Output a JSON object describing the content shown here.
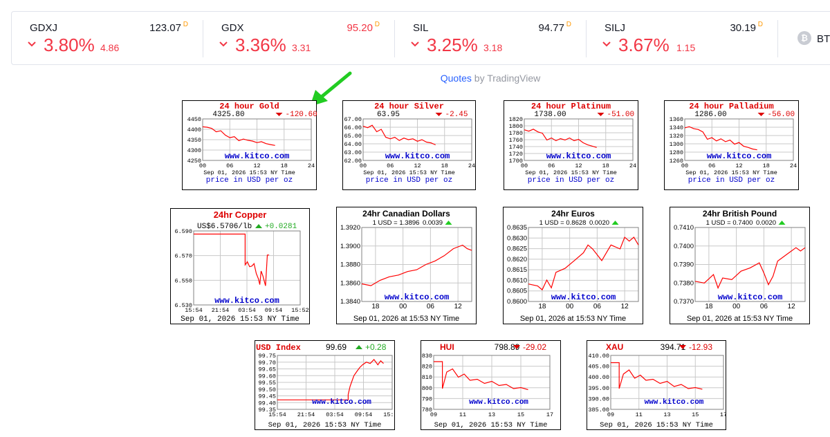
{
  "tickers": [
    {
      "symbol": "GDXJ",
      "price": "123.07",
      "price_red": false,
      "flag": "D",
      "pct": "3.80%",
      "abs": "4.86"
    },
    {
      "symbol": "GDX",
      "price": "95.20",
      "price_red": true,
      "flag": "D",
      "pct": "3.36%",
      "abs": "3.31"
    },
    {
      "symbol": "SIL",
      "price": "94.77",
      "price_red": false,
      "flag": "D",
      "pct": "3.25%",
      "abs": "3.18"
    },
    {
      "symbol": "SILJ",
      "price": "30.19",
      "price_red": false,
      "flag": "D",
      "pct": "3.67%",
      "abs": "1.15"
    }
  ],
  "ticker_partial": {
    "icon": "bitcoin-icon",
    "label": "BTC"
  },
  "attribution": {
    "quotes": "Quotes",
    "by": " by TradingView"
  },
  "annotation": {
    "icon": "green-arrow-icon",
    "color": "#22cc22"
  },
  "colors": {
    "up": "#22aa22",
    "down": "#ff0000",
    "line": "#ff0000",
    "site": "#0000cc",
    "red_text": "#f23645",
    "orange": "#ff9800"
  },
  "chart_data": [
    {
      "type": "line",
      "title": "24 hour Gold",
      "value": "4325.80",
      "change": "-120.60",
      "direction": "down",
      "yticks": [
        "4450",
        "4400",
        "4350",
        "4300",
        "4250"
      ],
      "ylim": [
        4250,
        4460
      ],
      "xticks": [
        "00",
        "06",
        "12",
        "18",
        "24"
      ],
      "xlim": [
        0,
        24
      ],
      "site": "www.kitco.com",
      "date": "Sep 01, 2026 15:53 NY Time",
      "footer": "price in USD per oz",
      "x": [
        0,
        1,
        2,
        3,
        4,
        5,
        6,
        7,
        8,
        9,
        10,
        11,
        12,
        13,
        14,
        15,
        16
      ],
      "y": [
        4420,
        4418,
        4412,
        4395,
        4400,
        4378,
        4365,
        4370,
        4350,
        4358,
        4352,
        4348,
        4340,
        4345,
        4335,
        4330,
        4326
      ]
    },
    {
      "type": "line",
      "title": "24 hour Silver",
      "value": "63.95",
      "change": "-2.45",
      "direction": "down",
      "yticks": [
        "67.00",
        "66.00",
        "65.00",
        "64.00",
        "63.00",
        "62.00"
      ],
      "ylim": [
        62,
        67.2
      ],
      "xticks": [
        "00",
        "06",
        "12",
        "18",
        "24"
      ],
      "xlim": [
        0,
        24
      ],
      "site": "www.kitco.com",
      "date": "Sep 01, 2026 15:53 NY Time",
      "footer": "price in USD per oz",
      "x": [
        0,
        1,
        2,
        3,
        4,
        5,
        6,
        7,
        8,
        9,
        10,
        11,
        12,
        13,
        14,
        15,
        16
      ],
      "y": [
        66.3,
        66.1,
        66.4,
        65.6,
        65.9,
        64.9,
        64.7,
        64.9,
        64.5,
        64.8,
        64.6,
        64.7,
        64.4,
        64.6,
        64.3,
        64.2,
        63.95
      ]
    },
    {
      "type": "line",
      "title": "24 hour Platinum",
      "value": "1738.00",
      "change": "-51.00",
      "direction": "down",
      "yticks": [
        "1820",
        "1800",
        "1780",
        "1760",
        "1740",
        "1720",
        "1700"
      ],
      "ylim": [
        1700,
        1822
      ],
      "xticks": [
        "00",
        "06",
        "12",
        "18",
        "24"
      ],
      "xlim": [
        0,
        24
      ],
      "site": "www.kitco.com",
      "date": "Sep 01, 2026 15:53 NY Time",
      "footer": "price in USD per oz",
      "x": [
        0,
        1,
        2,
        3,
        4,
        5,
        6,
        7,
        8,
        9,
        10,
        11,
        12,
        13,
        14,
        15,
        16
      ],
      "y": [
        1790,
        1786,
        1792,
        1784,
        1780,
        1760,
        1766,
        1758,
        1764,
        1760,
        1766,
        1758,
        1762,
        1752,
        1746,
        1742,
        1738
      ]
    },
    {
      "type": "line",
      "title": "24 hour Palladium",
      "value": "1286.00",
      "change": "-56.00",
      "direction": "down",
      "yticks": [
        "1360",
        "1340",
        "1320",
        "1300",
        "1280",
        "1260"
      ],
      "ylim": [
        1260,
        1362
      ],
      "xticks": [
        "00",
        "06",
        "12",
        "18",
        "24"
      ],
      "xlim": [
        0,
        24
      ],
      "site": "www.kitco.com",
      "date": "Sep 01, 2026 15:53 NY Time",
      "footer": "price in USD per oz",
      "x": [
        0,
        1,
        2,
        3,
        4,
        5,
        6,
        7,
        8,
        9,
        10,
        11,
        12,
        13,
        14,
        15,
        16
      ],
      "y": [
        1340,
        1343,
        1338,
        1336,
        1330,
        1312,
        1316,
        1308,
        1313,
        1306,
        1310,
        1300,
        1304,
        1295,
        1292,
        1288,
        1286
      ]
    },
    {
      "type": "line",
      "title": "24hr Copper",
      "value": "US$6.5706/lb",
      "change": "+0.0281",
      "direction": "up",
      "yticks": [
        "6.590",
        "6.570",
        "6.550",
        "6.530"
      ],
      "ylim": [
        6.53,
        6.59
      ],
      "xticks": [
        "15:54",
        "21:54",
        "03:54",
        "09:54",
        "15:52"
      ],
      "xlim": [
        0,
        24
      ],
      "site": "www.kitco.com",
      "date": "Sep 01, 2026 15:53 NY Time",
      "x": [
        0,
        11.6,
        11.6,
        12.1,
        12.6,
        13.1,
        13.6,
        14.1,
        14.6,
        14.9,
        15.2,
        15.6,
        16.2,
        16.6,
        17
      ],
      "y": [
        6.5875,
        6.5875,
        6.5625,
        6.565,
        6.561,
        6.5615,
        6.5635,
        6.5555,
        6.551,
        6.5465,
        6.5575,
        6.5535,
        6.5455,
        6.5705,
        6.5705
      ]
    },
    {
      "type": "line",
      "title": "24hr Canadian Dollars",
      "value": "1 USD = 1.3896",
      "change": "0.0039",
      "direction": "up",
      "yticks": [
        "1.3920",
        "1.3900",
        "1.3880",
        "1.3860",
        "1.3840"
      ],
      "ylim": [
        1.3838,
        1.3922
      ],
      "xticks": [
        "18",
        "00",
        "06",
        "12"
      ],
      "xlim": [
        15,
        39
      ],
      "site": "www.kitco.com",
      "date": "Sep 01, 2026 at 15:53 NY Time",
      "x": [
        15,
        17,
        19,
        21,
        23,
        25,
        27,
        29,
        31,
        33,
        35,
        37,
        38,
        39
      ],
      "y": [
        1.3858,
        1.3856,
        1.3862,
        1.3866,
        1.3868,
        1.3872,
        1.3874,
        1.388,
        1.3884,
        1.389,
        1.3898,
        1.3902,
        1.3898,
        1.3896
      ]
    },
    {
      "type": "line",
      "title": "24hr Euros",
      "value": "1 USD = 0.8628",
      "change": "0.0020",
      "direction": "up",
      "yticks": [
        "0.8635",
        "0.8630",
        "0.8625",
        "0.8620",
        "0.8615",
        "0.8610",
        "0.8605",
        "0.8600"
      ],
      "ylim": [
        0.8599,
        0.8637
      ],
      "xticks": [
        "18",
        "00",
        "06",
        "12"
      ],
      "xlim": [
        15,
        39
      ],
      "site": "www.kitco.com",
      "date": "Sep 01, 2026 at 15:53 NY Time",
      "x": [
        15,
        17,
        18,
        19,
        20,
        21,
        23,
        25,
        27,
        28,
        29,
        31,
        33,
        35,
        36,
        37,
        38,
        39
      ],
      "y": [
        0.8608,
        0.8607,
        0.8605,
        0.861,
        0.8606,
        0.8614,
        0.8616,
        0.862,
        0.8624,
        0.8628,
        0.8626,
        0.862,
        0.8628,
        0.8626,
        0.8632,
        0.863,
        0.8632,
        0.8628
      ]
    },
    {
      "type": "line",
      "title": "24hr British Pound",
      "value": "1 USD = 0.7400",
      "change": "0.0020",
      "direction": "up",
      "yticks": [
        "0.7410",
        "0.7400",
        "0.7390",
        "0.7380",
        "0.7370"
      ],
      "ylim": [
        0.7368,
        0.7412
      ],
      "xticks": [
        "18",
        "00",
        "06",
        "12"
      ],
      "xlim": [
        15,
        39
      ],
      "site": "www.kitco.com",
      "date": "Sep 01, 2026 at 15:53 NY Time",
      "x": [
        15,
        17,
        19,
        20,
        21,
        23,
        25,
        27,
        29,
        30,
        31,
        32,
        33,
        35,
        37,
        38,
        39
      ],
      "y": [
        0.738,
        0.7379,
        0.7384,
        0.7376,
        0.7382,
        0.7381,
        0.7386,
        0.7388,
        0.7391,
        0.7385,
        0.7378,
        0.7383,
        0.7392,
        0.7396,
        0.74,
        0.7398,
        0.74
      ]
    },
    {
      "type": "line",
      "title": "USD Index",
      "value": "99.69",
      "change": "+0.28",
      "direction": "up",
      "yticks": [
        "99.75",
        "99.70",
        "99.65",
        "99.60",
        "99.55",
        "99.50",
        "99.45",
        "99.40",
        "99.35"
      ],
      "ylim": [
        99.35,
        99.75
      ],
      "xticks": [
        "15:54",
        "21:54",
        "03:54",
        "09:54",
        "15:52"
      ],
      "xlim": [
        0,
        24
      ],
      "site": "www.kitco.com",
      "date": "Sep 01, 2026 15:53 NY Time",
      "x": [
        0,
        14.8,
        14.8,
        15.2,
        15.6,
        16,
        16.6,
        17.2,
        17.8,
        18.6,
        19.4,
        20.2,
        21,
        21.6,
        22.2
      ],
      "y": [
        99.42,
        99.42,
        99.46,
        99.52,
        99.56,
        99.6,
        99.63,
        99.66,
        99.68,
        99.7,
        99.69,
        99.72,
        99.68,
        99.71,
        99.69
      ]
    },
    {
      "type": "line",
      "title": "HUI",
      "value": "798.89",
      "change": "-29.02",
      "direction": "down",
      "yticks": [
        "830",
        "820",
        "810",
        "800",
        "790",
        "780"
      ],
      "ylim": [
        780,
        832
      ],
      "xticks": [
        "09",
        "11",
        "13",
        "15",
        "17"
      ],
      "xlim": [
        9,
        17
      ],
      "site": "www.kitco.com",
      "date": "Sep 01, 2026 15:53 NY Time",
      "x": [
        9,
        9.6,
        9.6,
        9.9,
        10.3,
        10.7,
        11.1,
        11.5,
        12,
        12.5,
        13,
        13.5,
        14,
        14.5,
        15,
        15.5
      ],
      "y": [
        826,
        826,
        800,
        816,
        819,
        811,
        814,
        808,
        809,
        805,
        807,
        803,
        804,
        800,
        801,
        799
      ]
    },
    {
      "type": "line",
      "title": "XAU",
      "value": "394.71",
      "change": "-12.93",
      "direction": "down",
      "yticks": [
        "410.00",
        "405.00",
        "400.00",
        "395.00",
        "390.00",
        "385.00"
      ],
      "ylim": [
        385,
        411
      ],
      "xticks": [
        "09",
        "11",
        "13",
        "15",
        "17"
      ],
      "xlim": [
        9,
        17
      ],
      "site": "www.kitco.com",
      "date": "Sep 01, 2026 15:53 NY Time",
      "x": [
        9,
        9.6,
        9.6,
        9.9,
        10.3,
        10.7,
        11.1,
        11.5,
        12,
        12.5,
        13,
        13.5,
        14,
        14.5,
        15,
        15.5
      ],
      "y": [
        407.5,
        407.5,
        395,
        402,
        404,
        400,
        401.5,
        399,
        399.5,
        397.5,
        398.5,
        396,
        397,
        395,
        395.5,
        394.7
      ]
    }
  ]
}
